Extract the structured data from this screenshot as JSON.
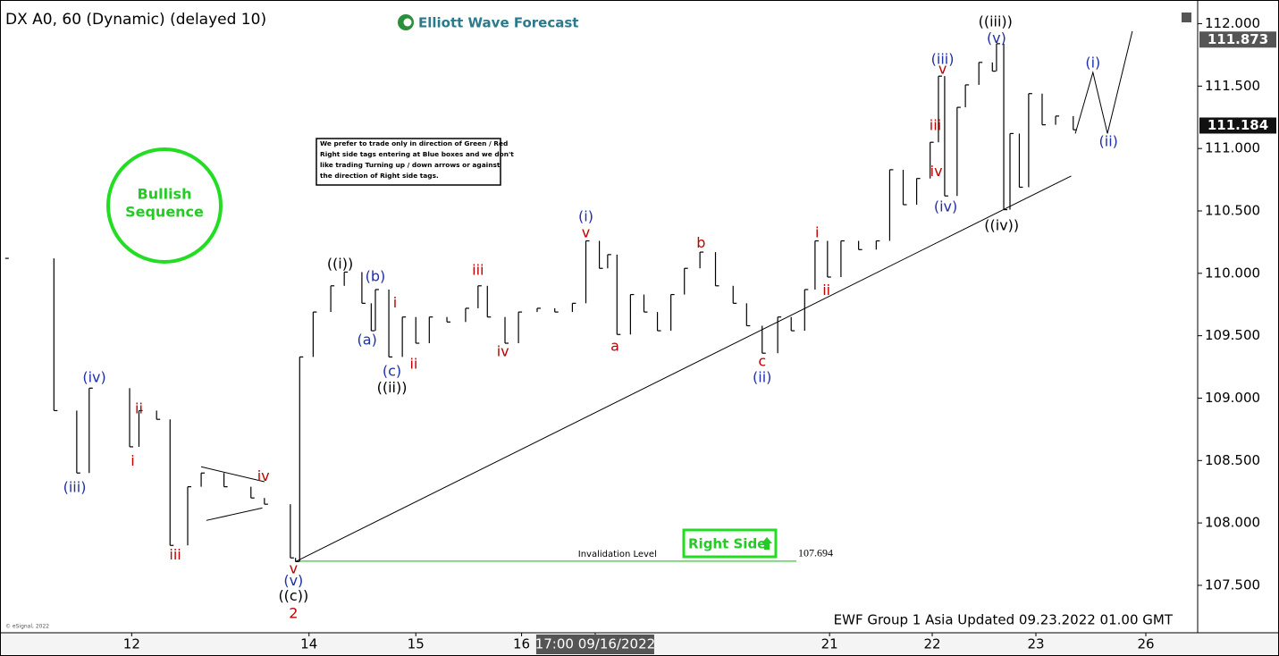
{
  "chart_data": {
    "type": "price-bars",
    "title": "DX A0, 60 (Dynamic) (delayed 10)",
    "brand": "Elliott Wave Forecast",
    "footer": "EWF Group 1 Asia Updated 09.23.2022 01.00 GMT",
    "copyright": "© eSignal, 2022",
    "badge": [
      "Bullish",
      "Sequence"
    ],
    "right_side": "Right Side",
    "note": [
      "We prefer to trade only in direction of Green / Red",
      "Right side tags entering at Blue boxes and we don't",
      "like trading Turning up / down arrows or against",
      "the direction of Right side tags."
    ],
    "xlim": [
      -0.27,
      11.28
    ],
    "xticks": [
      {
        "value": 1,
        "label": "12"
      },
      {
        "value": 2.71,
        "label": "14"
      },
      {
        "value": 3.74,
        "label": "15"
      },
      {
        "value": 4.76,
        "label": "16"
      },
      {
        "value": 5.47,
        "label": "17:00 09/16/2022"
      },
      {
        "value": 7.73,
        "label": "21"
      },
      {
        "value": 8.72,
        "label": "22"
      },
      {
        "value": 9.72,
        "label": "23"
      },
      {
        "value": 10.78,
        "label": "26"
      }
    ],
    "highlighted_xtick": 4,
    "ylim": [
      107.12,
      112.19
    ],
    "yticks": [
      {
        "value": 107.5,
        "label": "107.500"
      },
      {
        "value": 108,
        "label": "108.000"
      },
      {
        "value": 108.5,
        "label": "108.500"
      },
      {
        "value": 109,
        "label": "109.000"
      },
      {
        "value": 109.5,
        "label": "109.500"
      },
      {
        "value": 110,
        "label": "110.000"
      },
      {
        "value": 110.5,
        "label": "110.500"
      },
      {
        "value": 111,
        "label": "111.000"
      },
      {
        "value": 111.5,
        "label": "111.500"
      },
      {
        "value": 112,
        "label": "112.000"
      }
    ],
    "series": [
      {
        "color": "#000000",
        "x": [
          -0.22,
          0.25,
          0.47,
          0.59,
          0.98,
          1.07,
          1.24,
          1.37,
          1.54,
          1.67,
          1.89,
          2.15,
          2.28,
          2.53,
          2.58,
          2.62,
          2.75,
          2.92,
          3.05,
          3.22,
          3.31,
          3.35,
          3.48,
          3.61,
          3.74,
          3.87,
          4.04,
          4.22,
          4.34,
          4.43,
          4.6,
          4.73,
          4.91,
          5.08,
          5.25,
          5.38,
          5.51,
          5.59,
          5.68,
          5.81,
          5.94,
          6.07,
          6.2,
          6.33,
          6.48,
          6.63,
          6.8,
          6.93,
          7.08,
          7.23,
          7.36,
          7.49,
          7.59,
          7.71,
          7.84,
          8.01,
          8.18,
          8.31,
          8.44,
          8.57,
          8.7,
          8.78,
          8.84,
          8.96,
          9.04,
          9.17,
          9.3,
          9.34,
          9.41,
          9.47,
          9.56,
          9.65,
          9.78,
          9.91,
          10.08
        ],
        "values": [
          110.12,
          108.9,
          108.4,
          109.08,
          108.61,
          108.9,
          108.83,
          107.82,
          108.29,
          108.4,
          108.29,
          108.2,
          108.15,
          107.72,
          107.69,
          109.33,
          109.69,
          109.9,
          110.01,
          109.76,
          109.54,
          109.87,
          109.33,
          109.65,
          109.44,
          109.65,
          109.61,
          109.72,
          109.9,
          109.65,
          109.44,
          109.69,
          109.72,
          109.69,
          109.76,
          110.26,
          110.04,
          110.15,
          109.51,
          109.83,
          109.69,
          109.54,
          109.83,
          110.04,
          110.17,
          109.9,
          109.76,
          109.58,
          109.36,
          109.65,
          109.54,
          109.87,
          110.26,
          109.97,
          110.26,
          110.19,
          110.26,
          110.83,
          110.55,
          110.76,
          111.05,
          111.58,
          110.62,
          111.33,
          111.51,
          111.69,
          111.62,
          111.84,
          110.51,
          111.12,
          110.69,
          111.44,
          111.19,
          111.26,
          111.15
        ]
      }
    ],
    "lines": [
      {
        "x": [
          2.58,
          10.06
        ],
        "y": [
          107.69,
          110.78
        ],
        "color": "#000000"
      },
      {
        "x": [
          1.67,
          2.28
        ],
        "y": [
          108.45,
          108.33
        ],
        "color": "#000000"
      },
      {
        "x": [
          1.72,
          2.26
        ],
        "y": [
          108.02,
          108.12
        ],
        "color": "#000000"
      },
      {
        "x": [
          10.1,
          10.27,
          10.41,
          10.65
        ],
        "y": [
          111.12,
          111.61,
          111.12,
          111.94
        ],
        "color": "#000000"
      }
    ],
    "invalidation": {
      "label": "Invalidation Level",
      "value": 107.694,
      "x": [
        2.58,
        7.41
      ],
      "color": "#33cc33"
    },
    "price_markers": [
      {
        "value": 111.873,
        "color": "#555555"
      },
      {
        "value": 111.184,
        "color": "#111111"
      }
    ],
    "annotations": [
      {
        "text": "((i))",
        "x": 3.01,
        "y": 110.07,
        "color": "#000000"
      },
      {
        "text": "((ii))",
        "x": 3.51,
        "y": 109.08,
        "color": "#000000"
      },
      {
        "text": "((c))",
        "x": 2.56,
        "y": 107.41,
        "color": "#000000"
      },
      {
        "text": "((iii))",
        "x": 9.33,
        "y": 112.01,
        "color": "#000000"
      },
      {
        "text": "((iv))",
        "x": 9.39,
        "y": 110.38,
        "color": "#000000"
      },
      {
        "text": "(iii)",
        "x": 0.45,
        "y": 108.28,
        "color": "#1f2fa8"
      },
      {
        "text": "(iv)",
        "x": 0.64,
        "y": 109.16,
        "color": "#1f2fa8"
      },
      {
        "text": "(v)",
        "x": 2.56,
        "y": 107.53,
        "color": "#1f2fa8"
      },
      {
        "text": "(a)",
        "x": 3.27,
        "y": 109.46,
        "color": "#1f2fa8"
      },
      {
        "text": "(b)",
        "x": 3.35,
        "y": 109.97,
        "color": "#1f2fa8"
      },
      {
        "text": "(c)",
        "x": 3.51,
        "y": 109.21,
        "color": "#1f2fa8"
      },
      {
        "text": "(i)",
        "x": 5.38,
        "y": 110.45,
        "color": "#1f2fa8"
      },
      {
        "text": "(ii)",
        "x": 7.08,
        "y": 109.16,
        "color": "#1f2fa8"
      },
      {
        "text": "(iv)",
        "x": 8.85,
        "y": 110.53,
        "color": "#1f2fa8"
      },
      {
        "text": "(iii)",
        "x": 8.82,
        "y": 111.71,
        "color": "#1f2fa8"
      },
      {
        "text": "(v)",
        "x": 9.34,
        "y": 111.88,
        "color": "#1f2fa8"
      },
      {
        "text": "(i)",
        "x": 10.27,
        "y": 111.68,
        "color": "#1f2fa8"
      },
      {
        "text": "(ii)",
        "x": 10.42,
        "y": 111.05,
        "color": "#1f2fa8"
      },
      {
        "text": "ii",
        "x": 1.07,
        "y": 108.91,
        "color": "#c00000"
      },
      {
        "text": "i",
        "x": 1.01,
        "y": 108.49,
        "color": "#c00000"
      },
      {
        "text": "iii",
        "x": 1.42,
        "y": 107.74,
        "color": "#c00000"
      },
      {
        "text": "iv",
        "x": 2.27,
        "y": 108.37,
        "color": "#c00000"
      },
      {
        "text": "v",
        "x": 2.56,
        "y": 107.63,
        "color": "#c00000"
      },
      {
        "text": "2",
        "x": 2.56,
        "y": 107.27,
        "color": "#c00000"
      },
      {
        "text": "i",
        "x": 3.54,
        "y": 109.76,
        "color": "#c00000"
      },
      {
        "text": "ii",
        "x": 3.72,
        "y": 109.27,
        "color": "#c00000"
      },
      {
        "text": "iii",
        "x": 4.34,
        "y": 110.02,
        "color": "#c00000"
      },
      {
        "text": "iv",
        "x": 4.58,
        "y": 109.37,
        "color": "#c00000"
      },
      {
        "text": "v",
        "x": 5.38,
        "y": 110.32,
        "color": "#c00000"
      },
      {
        "text": "a",
        "x": 5.66,
        "y": 109.41,
        "color": "#c00000"
      },
      {
        "text": "b",
        "x": 6.49,
        "y": 110.24,
        "color": "#c00000"
      },
      {
        "text": "c",
        "x": 7.08,
        "y": 109.29,
        "color": "#c00000"
      },
      {
        "text": "i",
        "x": 7.61,
        "y": 110.32,
        "color": "#c00000"
      },
      {
        "text": "ii",
        "x": 7.7,
        "y": 109.86,
        "color": "#c00000"
      },
      {
        "text": "iii",
        "x": 8.75,
        "y": 111.18,
        "color": "#c00000"
      },
      {
        "text": "iv",
        "x": 8.76,
        "y": 110.81,
        "color": "#c00000"
      },
      {
        "text": "v",
        "x": 8.82,
        "y": 111.63,
        "color": "#c00000"
      }
    ]
  }
}
